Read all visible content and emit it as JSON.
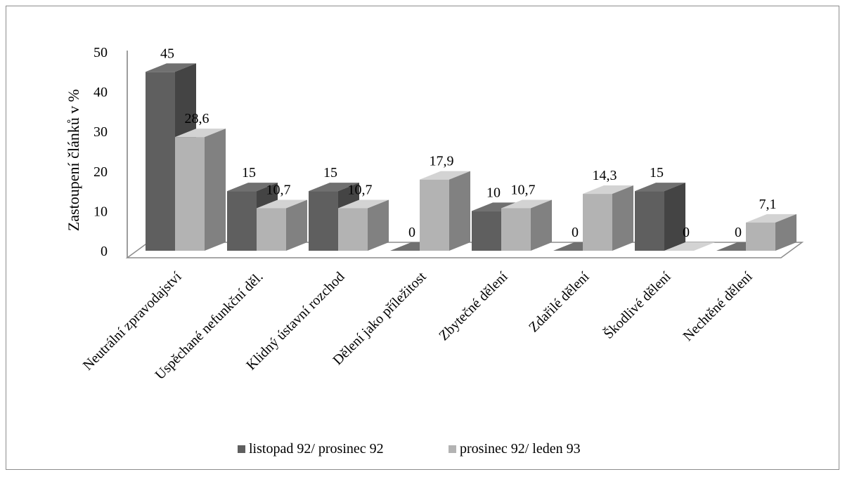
{
  "chart_data": {
    "type": "bar",
    "subtype": "3d-clustered-column",
    "title": "",
    "ylabel": "Zastoupení článků v %",
    "xlabel": "",
    "ylim": [
      0,
      50
    ],
    "yticks": [
      "0",
      "10",
      "20",
      "30",
      "40",
      "50"
    ],
    "grid": false,
    "legend_position": "bottom",
    "categories": [
      "Neutrální zpravodajství",
      "Uspěchané nefunkční děl.",
      "Klidný ústavní rozchod",
      "Dělení jako příležitost",
      "Zbytečné dělení",
      "Zdařilé dělení",
      "Škodlivé dělení",
      "Nechtěné dělení"
    ],
    "series": [
      {
        "name": "listopad 92/ prosinec 92",
        "color": "#5f5f5f",
        "values": [
          45,
          15,
          15,
          0,
          10,
          0,
          15,
          0
        ],
        "labels": [
          "45",
          "15",
          "15",
          "0",
          "10",
          "0",
          "15",
          "0"
        ]
      },
      {
        "name": "prosinec 92/ leden 93",
        "color": "#b3b3b3",
        "values": [
          28.6,
          10.7,
          10.7,
          17.9,
          10.7,
          14.3,
          0,
          7.1
        ],
        "labels": [
          "28,6",
          "10,7",
          "10,7",
          "17,9",
          "10,7",
          "14,3",
          "0",
          "7,1"
        ]
      }
    ]
  }
}
